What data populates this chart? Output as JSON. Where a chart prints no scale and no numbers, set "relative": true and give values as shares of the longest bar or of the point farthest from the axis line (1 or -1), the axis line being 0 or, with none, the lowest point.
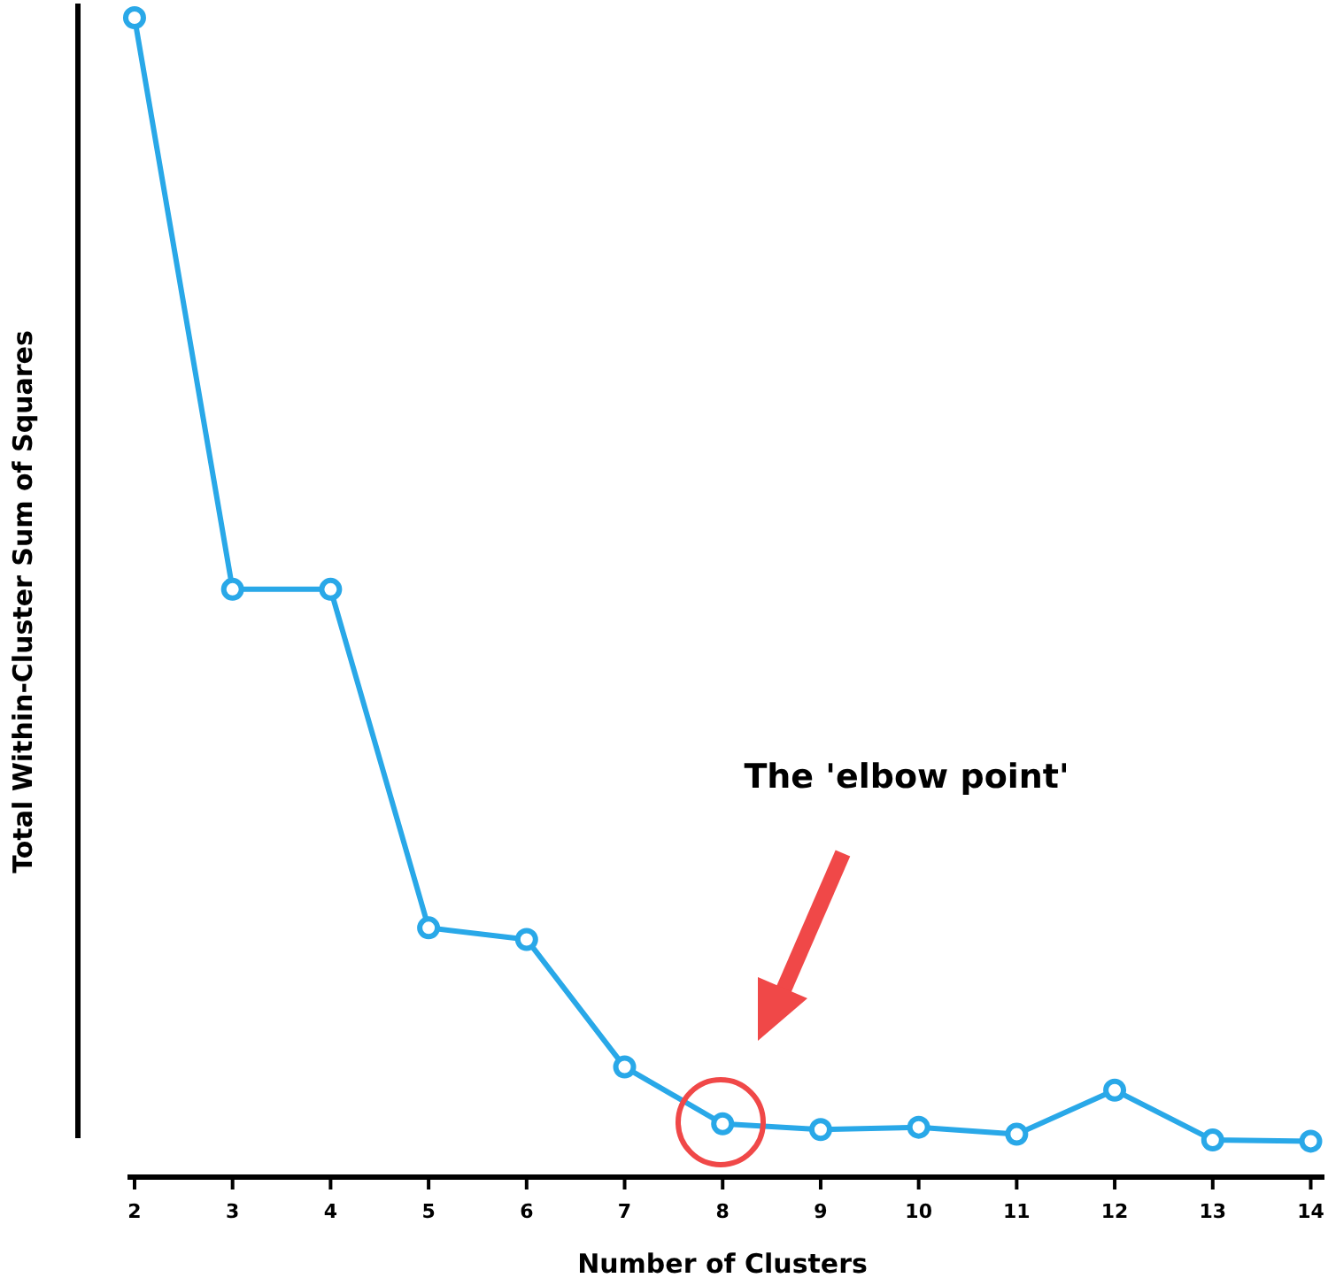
{
  "chart_data": {
    "type": "line",
    "relative": true,
    "xlabel": "Number of Clusters",
    "ylabel": "Total Within-Cluster Sum of Squares",
    "x": [
      2,
      3,
      4,
      5,
      6,
      7,
      8,
      9,
      10,
      11,
      12,
      13,
      14
    ],
    "xlim": [
      1.928,
      14.14
    ],
    "xticks": [
      2,
      3,
      4,
      5,
      6,
      7,
      8,
      9,
      10,
      11,
      12,
      13,
      14
    ],
    "series": [
      {
        "color": "#29a8e8",
        "values": [
          1,
          0.507,
          0.507,
          0.215,
          0.205,
          0.095,
          0.046,
          0.041,
          0.043,
          0.037,
          0.075,
          0.032,
          0.031
        ]
      }
    ],
    "marker": "circle",
    "line_style": "solid",
    "annotations": [
      "The 'elbow point'"
    ]
  }
}
